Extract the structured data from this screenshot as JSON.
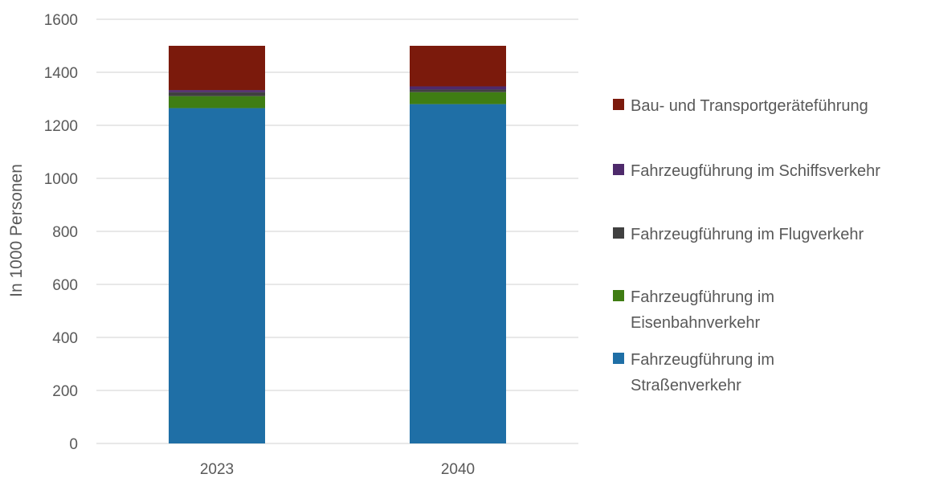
{
  "chart_data": {
    "type": "bar",
    "stacked": true,
    "categories": [
      "2023",
      "2040"
    ],
    "ylabel": "In 1000 Personen",
    "xlabel": "",
    "ylim": [
      0,
      1600
    ],
    "yticks": [
      0,
      200,
      400,
      600,
      800,
      1000,
      1200,
      1400,
      1600
    ],
    "grid": true,
    "legend_position": "right",
    "series": [
      {
        "name": "Fahrzeugführung im Straßenverkehr",
        "legend_lines": [
          "Fahrzeugführung im",
          "Straßenverkehr"
        ],
        "color": "#1f6fa6",
        "values": [
          1265,
          1280
        ]
      },
      {
        "name": "Fahrzeugführung im Eisenbahnverkehr",
        "legend_lines": [
          "Fahrzeugführung im",
          "Eisenbahnverkehr"
        ],
        "color": "#3f7d13",
        "values": [
          45,
          45
        ]
      },
      {
        "name": "Fahrzeugführung im Flugverkehr",
        "legend_lines": [
          "Fahrzeugführung im Flugverkehr"
        ],
        "color": "#404040",
        "values": [
          15,
          10
        ]
      },
      {
        "name": "Fahrzeugführung im Schiffsverkehr",
        "legend_lines": [
          "Fahrzeugführung im Schiffsverkehr"
        ],
        "color": "#4e2a6b",
        "values": [
          8,
          12
        ]
      },
      {
        "name": "Bau- und Transportgeräteführung",
        "legend_lines": [
          "Bau- und Transportgeräteführung"
        ],
        "color": "#7b1a0c",
        "values": [
          167,
          153
        ]
      }
    ]
  }
}
